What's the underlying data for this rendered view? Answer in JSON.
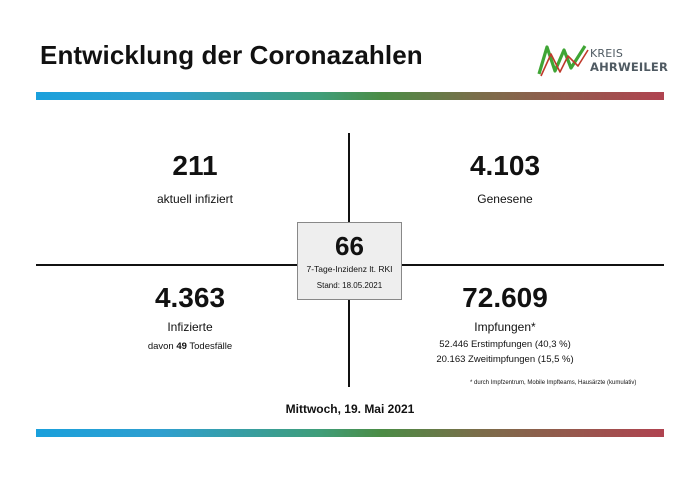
{
  "header": {
    "title": "Entwicklung der Coronazahlen",
    "logo": {
      "line1": "KREIS",
      "line2": "AHRWEILER",
      "icon": "ahrweiler-logo-icon"
    }
  },
  "quadrants": {
    "infected_current": {
      "value": "211",
      "label": "aktuell infiziert"
    },
    "recovered": {
      "value": "4.103",
      "label": "Genesene"
    },
    "infected_total": {
      "value": "4.363",
      "label": "Infizierte",
      "deaths_prefix": "davon ",
      "deaths_count": "49",
      "deaths_suffix": " Todesfälle"
    },
    "vaccinations": {
      "value": "72.609",
      "label": "Impfungen*",
      "first": "52.446 Erstimpfungen (40,3 %)",
      "second": "20.163 Zweitimpfungen (15,5 %)",
      "footnote": "* durch Impfzentrum, Mobile Impfteams, Hausärzte (kumulativ)"
    }
  },
  "incidence": {
    "value": "66",
    "label": "7-Tage-Inzidenz lt. RKI",
    "stand": "Stand: 18.05.2021"
  },
  "footer": {
    "date": "Mittwoch, 19. Mai 2021"
  },
  "colors": {
    "gradient": [
      "#1aa0dc",
      "#3f9e7a",
      "#4b8c45",
      "#b04350"
    ],
    "logo_green": "#3fa535",
    "logo_red": "#c0392b"
  }
}
